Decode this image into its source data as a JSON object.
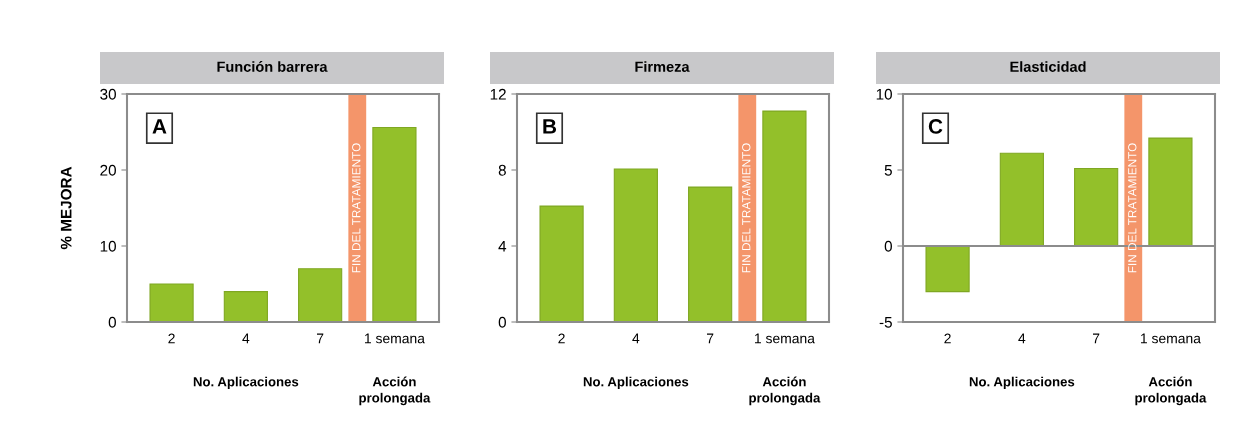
{
  "chart_data": [
    {
      "type": "bar",
      "title": "Función barrera",
      "ylabel": "% MEJORA",
      "categories": [
        "2",
        "4",
        "7",
        "1 semana"
      ],
      "values": [
        5,
        4,
        7,
        25.6
      ],
      "color": "#93c02a",
      "ylim": [
        0,
        30
      ],
      "yticks": [
        0,
        10,
        20,
        30
      ],
      "bands": [
        {
          "axis": "x",
          "from": "7",
          "to": "1 semana",
          "label": "FIN DEL TRATAMIENTO",
          "color": "#f4956a"
        }
      ],
      "annotations": [
        "A",
        "No. Aplicaciones",
        "Acción\nprolongada"
      ]
    },
    {
      "type": "bar",
      "title": "Firmeza",
      "categories": [
        "2",
        "4",
        "7",
        "1 semana"
      ],
      "values": [
        6.1,
        8.05,
        7.1,
        11.1
      ],
      "color": "#93c02a",
      "ylim": [
        0,
        12
      ],
      "yticks": [
        0,
        4,
        8,
        12
      ],
      "bands": [
        {
          "axis": "x",
          "from": "7",
          "to": "1 semana",
          "label": "FIN DEL TRATAMIENTO",
          "color": "#f4956a"
        }
      ],
      "annotations": [
        "B",
        "No. Aplicaciones",
        "Acción\nprolongada"
      ]
    },
    {
      "type": "bar",
      "title": "Elasticidad",
      "categories": [
        "2",
        "4",
        "7",
        "1 semana"
      ],
      "values": [
        -3,
        6.1,
        5.1,
        7.1
      ],
      "color": "#93c02a",
      "ylim": [
        -5,
        10
      ],
      "yticks": [
        -5,
        0,
        5,
        10
      ],
      "ref_lines": [
        {
          "axis": "y",
          "value": 0,
          "color": "#8c8c8c"
        }
      ],
      "bands": [
        {
          "axis": "x",
          "from": "7",
          "to": "1 semana",
          "label": "FIN DEL TRATAMIENTO",
          "color": "#f4956a"
        }
      ],
      "annotations": [
        "C",
        "No. Aplicaciones",
        "Acción\nprolongada"
      ]
    }
  ]
}
